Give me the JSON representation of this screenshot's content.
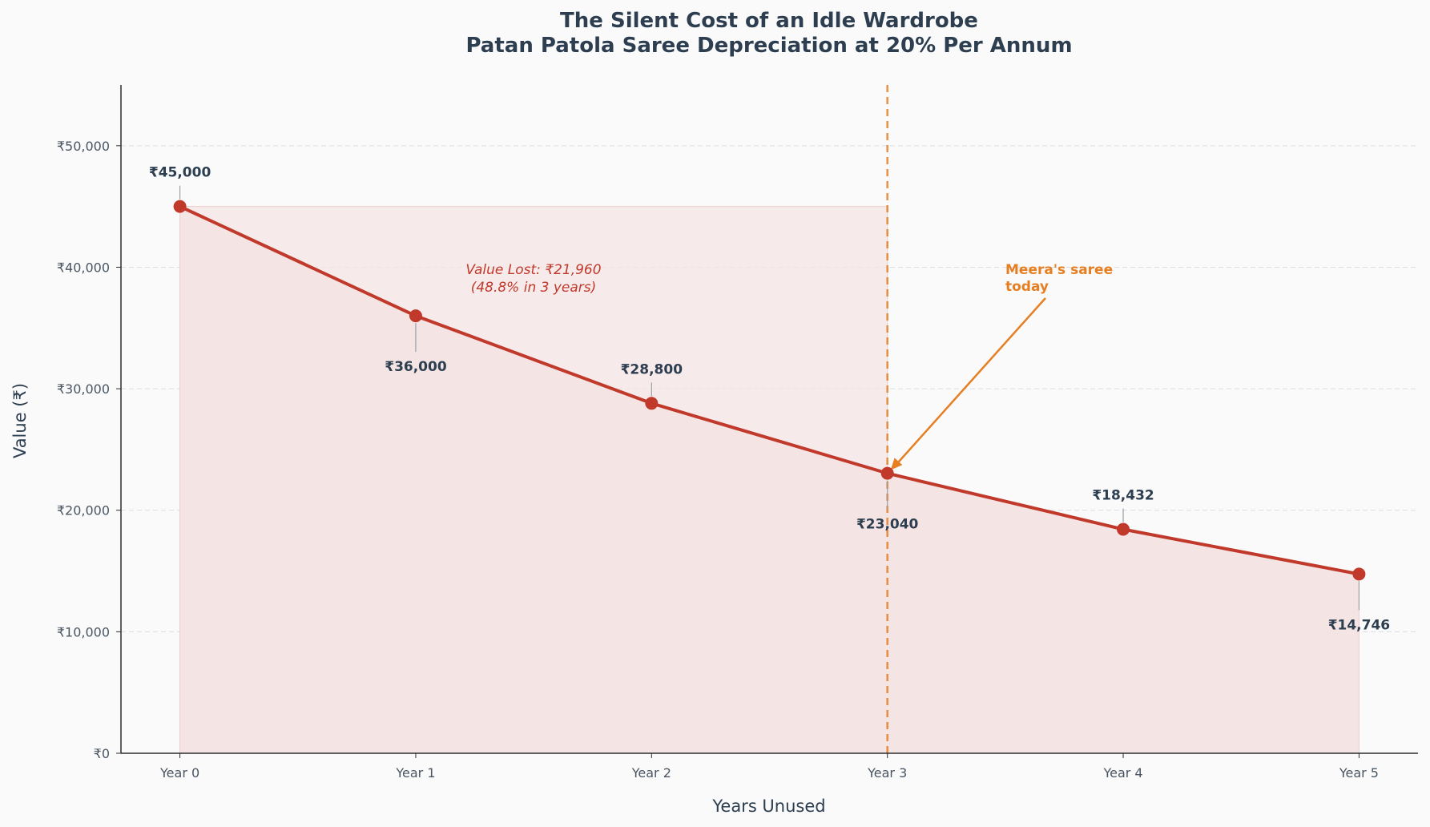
{
  "chart_data": {
    "type": "line",
    "title_line1": "The Silent Cost of an Idle Wardrobe",
    "title_line2": "Patan Patola Saree Depreciation at 20% Per Annum",
    "xlabel": "Years Unused",
    "ylabel": "Value (₹)",
    "categories": [
      "Year 0",
      "Year 1",
      "Year 2",
      "Year 3",
      "Year 4",
      "Year 5"
    ],
    "x": [
      0,
      1,
      2,
      3,
      4,
      5
    ],
    "values": [
      45000,
      36000,
      28800,
      23040,
      18432,
      14746
    ],
    "data_labels": [
      "₹45,000",
      "₹36,000",
      "₹28,800",
      "₹23,040",
      "₹18,432",
      "₹14,746"
    ],
    "ylim": [
      0,
      55000
    ],
    "xlim": [
      -0.25,
      5.25
    ],
    "yticks": [
      0,
      10000,
      20000,
      30000,
      40000,
      50000
    ],
    "ytick_labels": [
      "₹0",
      "₹10,000",
      "₹20,000",
      "₹30,000",
      "₹40,000",
      "₹50,000"
    ],
    "grid": "horizontal-dashed",
    "highlight_x": 3,
    "value_lost_line1": "Value Lost: ₹21,960",
    "value_lost_line2": "(48.8% in 3 years)",
    "callout_line1": "Meera's saree",
    "callout_line2": "today",
    "line_color": "#c0392b",
    "fill_color": "#f5e4e4",
    "accent_color": "#e67e22",
    "text_color": "#2c3e50"
  }
}
